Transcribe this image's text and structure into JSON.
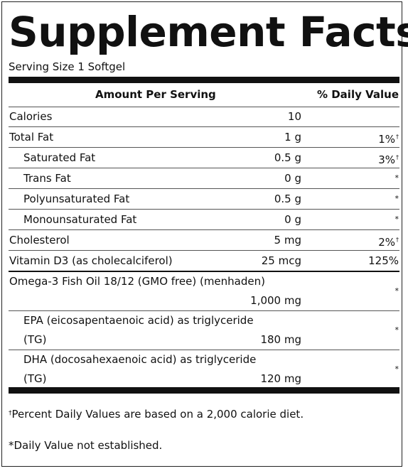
{
  "title": "Supplement Facts",
  "serving": "Serving Size 1 Softgel",
  "header": {
    "amount": "Amount Per Serving",
    "daily_value": "% Daily Value"
  },
  "rows": [
    {
      "name": "Calories",
      "amount": "10",
      "dv": "",
      "dv_mark": ""
    },
    {
      "name": "Total Fat",
      "amount": "1 g",
      "dv": "1%",
      "dv_mark": "†"
    },
    {
      "name": "Saturated Fat",
      "amount": "0.5 g",
      "dv": "3%",
      "dv_mark": "†"
    },
    {
      "name": "Trans Fat",
      "amount": "0 g",
      "dv": "*",
      "dv_mark": ""
    },
    {
      "name": "Polyunsaturated Fat",
      "amount": "0.5 g",
      "dv": "*",
      "dv_mark": ""
    },
    {
      "name": "Monounsaturated Fat",
      "amount": "0 g",
      "dv": "*",
      "dv_mark": ""
    },
    {
      "name": "Cholesterol",
      "amount": "5 mg",
      "dv": "2%",
      "dv_mark": "†"
    },
    {
      "name": "Vitamin D3 (as cholecalciferol)",
      "amount": "25 mcg",
      "dv": "125%",
      "dv_mark": ""
    },
    {
      "name": "Omega-3 Fish Oil 18/12 (GMO free) (menhaden)",
      "name_line2": "",
      "amount": "1,000 mg",
      "dv": "*",
      "dv_mark": ""
    },
    {
      "name": "EPA (eicosapentaenoic acid) as triglyceride",
      "name_line2": "(TG)",
      "amount": "180 mg",
      "dv": "*",
      "dv_mark": ""
    },
    {
      "name": "DHA (docosahexaenoic acid) as triglyceride",
      "name_line2": "(TG)",
      "amount": "120 mg",
      "dv": "*",
      "dv_mark": ""
    }
  ],
  "footnotes": {
    "dagger_mark": "†",
    "percent_note": "Percent Daily Values are based on a 2,000 calorie diet.",
    "star_note": "*Daily Value not established."
  }
}
